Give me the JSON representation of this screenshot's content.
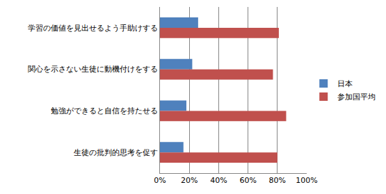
{
  "chart_data": {
    "type": "bar",
    "orientation": "horizontal",
    "categories": [
      "学習の価値を見出せるよう手助けする",
      "関心を示さない生徒に動機付けをする",
      "勉強ができると自信を持たせる",
      "生徒の批判的思考を促す"
    ],
    "series": [
      {
        "name": "日本",
        "color": "#4f81bd",
        "values": [
          26,
          22,
          18,
          16
        ]
      },
      {
        "name": "参加国平均",
        "color": "#c0504d",
        "values": [
          81,
          77,
          86,
          80
        ]
      }
    ],
    "xlim": [
      0,
      100
    ],
    "xticks": [
      {
        "value": 0,
        "label": "0%"
      },
      {
        "value": 20,
        "label": "20%"
      },
      {
        "value": 40,
        "label": "40%"
      },
      {
        "value": 60,
        "label": "60%"
      },
      {
        "value": 80,
        "label": "80%"
      },
      {
        "value": 100,
        "label": "100%"
      }
    ],
    "grid": true,
    "legend": "right"
  }
}
